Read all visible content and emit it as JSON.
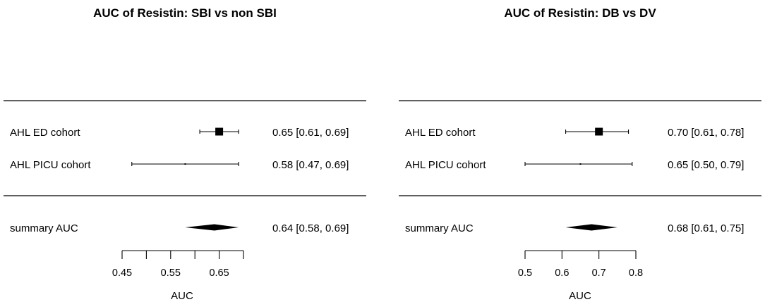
{
  "chart_data": [
    {
      "type": "forest",
      "title": "AUC of Resistin: SBI vs non SBI",
      "xlabel": "AUC",
      "xlim": [
        0.45,
        0.7
      ],
      "xticks": [
        0.45,
        0.5,
        0.55,
        0.6,
        0.65,
        0.7
      ],
      "xtick_labels": [
        "0.45",
        "",
        "0.55",
        "",
        "0.65",
        ""
      ],
      "studies": [
        {
          "label": "AHL ED cohort",
          "auc": 0.65,
          "lower": 0.61,
          "upper": 0.69,
          "ci_text": "0.65 [0.61, 0.69]"
        },
        {
          "label": "AHL PICU cohort",
          "auc": 0.58,
          "lower": 0.47,
          "upper": 0.69,
          "ci_text": "0.58 [0.47, 0.69]"
        }
      ],
      "summary": {
        "label": "summary AUC",
        "auc": 0.64,
        "lower": 0.58,
        "upper": 0.69,
        "ci_text": "0.64 [0.58, 0.69]"
      }
    },
    {
      "type": "forest",
      "title": "AUC of Resistin: DB vs DV",
      "xlabel": "AUC",
      "xlim": [
        0.5,
        0.8
      ],
      "xticks": [
        0.5,
        0.6,
        0.7,
        0.8
      ],
      "xtick_labels": [
        "0.5",
        "0.6",
        "0.7",
        "0.8"
      ],
      "studies": [
        {
          "label": "AHL ED cohort",
          "auc": 0.7,
          "lower": 0.61,
          "upper": 0.78,
          "ci_text": "0.70 [0.61, 0.78]"
        },
        {
          "label": "AHL PICU cohort",
          "auc": 0.65,
          "lower": 0.5,
          "upper": 0.79,
          "ci_text": "0.65 [0.50, 0.79]"
        }
      ],
      "summary": {
        "label": "summary AUC",
        "auc": 0.68,
        "lower": 0.61,
        "upper": 0.75,
        "ci_text": "0.68 [0.61, 0.75]"
      }
    }
  ]
}
